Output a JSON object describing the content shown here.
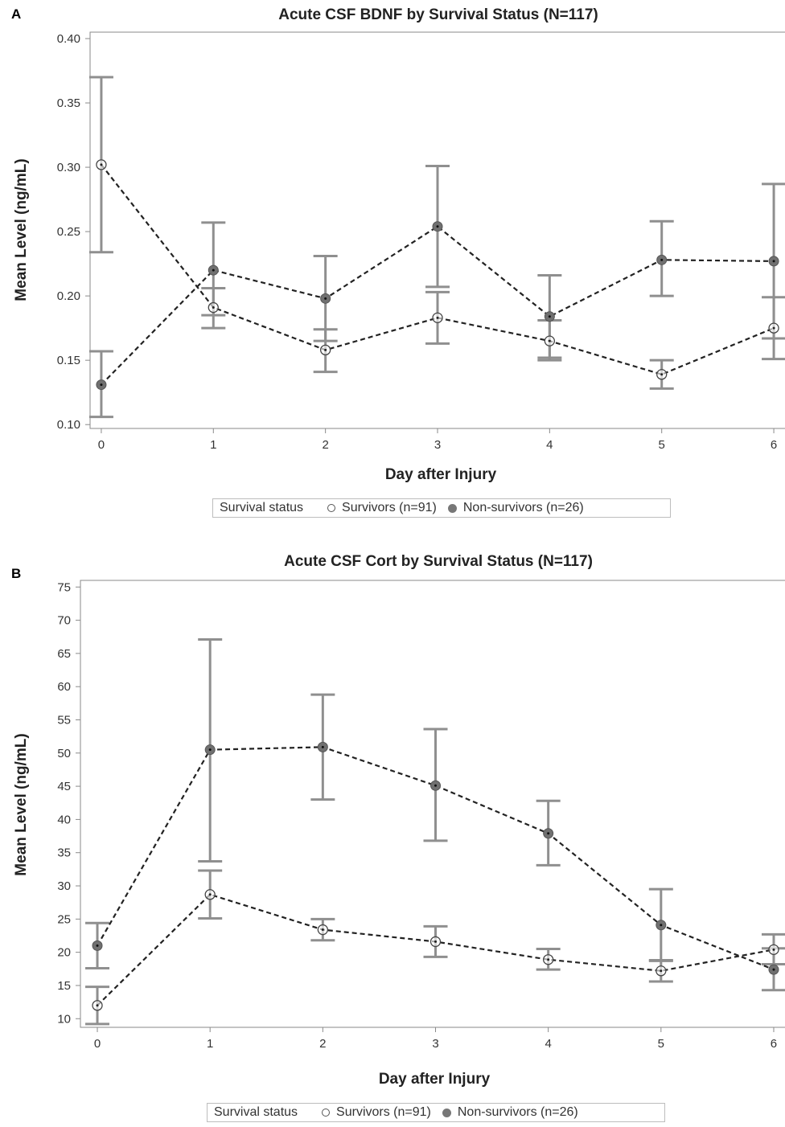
{
  "chart_data": [
    {
      "panel_label": "A",
      "type": "line",
      "title": "Acute CSF BDNF by Survival Status (N=117)",
      "xlabel": "Day after Injury",
      "ylabel": "Mean Level (ng/mL)",
      "x": [
        0,
        1,
        2,
        3,
        4,
        5,
        6
      ],
      "xlim": [
        -0.1,
        6.1
      ],
      "ylim": [
        0.097,
        0.405
      ],
      "yticks": [
        0.1,
        0.15,
        0.2,
        0.25,
        0.3,
        0.35,
        0.4
      ],
      "ytick_labels": [
        "0.10",
        "0.15",
        "0.20",
        "0.25",
        "0.30",
        "0.35",
        "0.40"
      ],
      "xtick_labels": [
        "0",
        "1",
        "2",
        "3",
        "4",
        "5",
        "6"
      ],
      "legend": {
        "title": "Survival status",
        "position": "bottom"
      },
      "series": [
        {
          "name": "Survivors (n=91)",
          "marker": "open-circle",
          "values": [
            0.302,
            0.191,
            0.158,
            0.183,
            0.165,
            0.139,
            0.175
          ],
          "lower": [
            0.234,
            0.175,
            0.141,
            0.163,
            0.15,
            0.128,
            0.151
          ],
          "upper": [
            0.37,
            0.206,
            0.174,
            0.203,
            0.181,
            0.15,
            0.199
          ]
        },
        {
          "name": "Non-survivors (n=26)",
          "marker": "filled-circle",
          "values": [
            0.131,
            0.22,
            0.198,
            0.254,
            0.184,
            0.228,
            0.227
          ],
          "lower": [
            0.106,
            0.185,
            0.165,
            0.207,
            0.152,
            0.2,
            0.167
          ],
          "upper": [
            0.157,
            0.257,
            0.231,
            0.301,
            0.216,
            0.258,
            0.287
          ]
        }
      ],
      "colors": {
        "errorbar": "#8f8f8f",
        "line": "#222222",
        "filled_marker": "#707070"
      }
    },
    {
      "panel_label": "B",
      "type": "line",
      "title": "Acute CSF Cort by Survival Status (N=117)",
      "xlabel": "Day after Injury",
      "ylabel": "Mean Level (ng/mL)",
      "x": [
        0,
        1,
        2,
        3,
        4,
        5,
        6
      ],
      "xlim": [
        -0.15,
        6.1
      ],
      "ylim": [
        8.7,
        76
      ],
      "yticks": [
        10,
        15,
        20,
        25,
        30,
        35,
        40,
        45,
        50,
        55,
        60,
        65,
        70,
        75
      ],
      "ytick_labels": [
        "10",
        "15",
        "20",
        "25",
        "30",
        "35",
        "40",
        "45",
        "50",
        "55",
        "60",
        "65",
        "70",
        "75"
      ],
      "xtick_labels": [
        "0",
        "1",
        "2",
        "3",
        "4",
        "5",
        "6"
      ],
      "legend": {
        "title": "Survival status",
        "position": "bottom"
      },
      "series": [
        {
          "name": "Survivors (n=91)",
          "marker": "open-circle",
          "values": [
            12.0,
            28.7,
            23.4,
            21.6,
            18.9,
            17.2,
            20.4
          ],
          "lower": [
            9.2,
            25.1,
            21.8,
            19.3,
            17.4,
            15.6,
            18.2
          ],
          "upper": [
            14.8,
            32.3,
            25.0,
            23.9,
            20.5,
            18.8,
            22.7
          ]
        },
        {
          "name": "Non-survivors (n=26)",
          "marker": "filled-circle",
          "values": [
            21.0,
            50.5,
            50.9,
            45.1,
            37.9,
            24.1,
            17.4
          ],
          "lower": [
            17.6,
            33.7,
            43.0,
            36.8,
            33.1,
            18.7,
            14.3
          ],
          "upper": [
            24.4,
            67.1,
            58.8,
            53.6,
            42.8,
            29.5,
            20.6
          ]
        }
      ],
      "colors": {
        "errorbar": "#8f8f8f",
        "line": "#222222",
        "filled_marker": "#707070"
      }
    }
  ],
  "panels": [
    {
      "letter": "A",
      "title": "Acute CSF BDNF by Survival Status (N=117)",
      "xlabel": "Day after Injury",
      "ylabel": "Mean Level (ng/mL)",
      "legend_title": "Survival status",
      "legend_open": "Survivors (n=91)",
      "legend_filled": "Non-survivors (n=26)"
    },
    {
      "letter": "B",
      "title": "Acute CSF Cort by Survival Status (N=117)",
      "xlabel": "Day after Injury",
      "ylabel": "Mean Level (ng/mL)",
      "legend_title": "Survival status",
      "legend_open": "Survivors (n=91)",
      "legend_filled": "Non-survivors (n=26)"
    }
  ]
}
